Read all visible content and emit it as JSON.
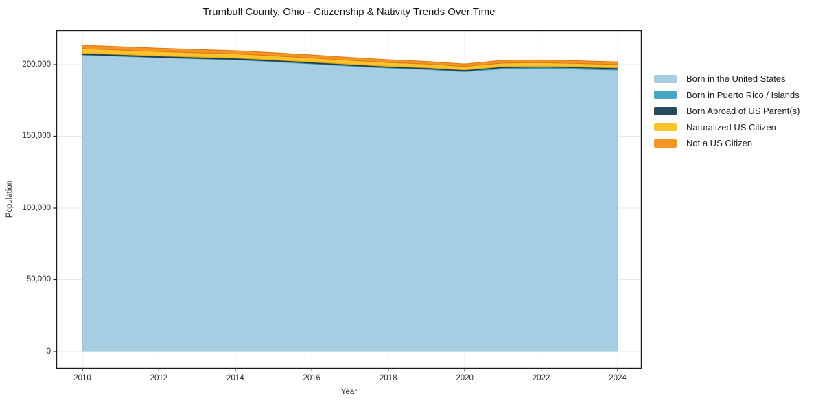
{
  "title": "Trumbull County, Ohio - Citizenship & Nativity Trends Over Time",
  "legend": {
    "items": [
      "Born in the United States",
      "Born in Puerto Rico / Islands",
      "Born Abroad of US Parent(s)",
      "Naturalized US Citizen",
      "Not a US Citizen"
    ]
  },
  "chart_data": {
    "type": "area",
    "stacked": true,
    "title": "Trumbull County, Ohio - Citizenship & Nativity Trends Over Time",
    "xlabel": "Year",
    "ylabel": "Population",
    "grid": true,
    "legend_position": "right-outside",
    "x": [
      2010,
      2011,
      2012,
      2013,
      2014,
      2015,
      2016,
      2017,
      2018,
      2019,
      2020,
      2021,
      2022,
      2023,
      2024
    ],
    "x_ticks": [
      2010,
      2012,
      2014,
      2016,
      2018,
      2020,
      2022,
      2024
    ],
    "y_ticks": [
      0,
      50000,
      100000,
      150000,
      200000
    ],
    "y_tick_labels": [
      "0",
      "50,000",
      "100,000",
      "150,000",
      "200,000"
    ],
    "ylim": [
      0,
      223900
    ],
    "xlim": [
      2009.32,
      2024.63
    ],
    "series": [
      {
        "name": "Born in the United States",
        "color": "#a6cee3",
        "edge_color": "#8ec1da",
        "values": [
          206700,
          205800,
          204800,
          204000,
          203300,
          202000,
          200500,
          199000,
          197600,
          196600,
          195000,
          197100,
          197400,
          196800,
          196200
        ]
      },
      {
        "name": "Born in Puerto Rico / Islands",
        "color": "#46a5c0",
        "edge_color": "#3a93ae",
        "values": [
          300,
          320,
          340,
          360,
          380,
          400,
          430,
          460,
          500,
          550,
          600,
          800,
          900,
          1000,
          1000
        ]
      },
      {
        "name": "Born Abroad of US Parent(s)",
        "color": "#29495c",
        "edge_color": "#1f3a4a",
        "values": [
          900,
          890,
          880,
          870,
          860,
          840,
          820,
          790,
          760,
          720,
          700,
          650,
          620,
          580,
          550
        ]
      },
      {
        "name": "Naturalized US Citizen",
        "color": "#fcc32d",
        "edge_color": "#e2a918",
        "values": [
          3100,
          3050,
          3000,
          2950,
          2900,
          2850,
          2800,
          2700,
          2600,
          2500,
          2400,
          2500,
          2400,
          2350,
          2300
        ]
      },
      {
        "name": "Not a US Citizen",
        "color": "#f79428",
        "edge_color": "#dd7c13",
        "values": [
          2400,
          2350,
          2300,
          2250,
          2200,
          2150,
          2100,
          2000,
          1900,
          1800,
          1700,
          1900,
          1850,
          1800,
          1750
        ]
      }
    ],
    "colors": {
      "grid": "#e7e7e7",
      "spine": "#1a1a1a",
      "tick_text": "#262626"
    }
  }
}
